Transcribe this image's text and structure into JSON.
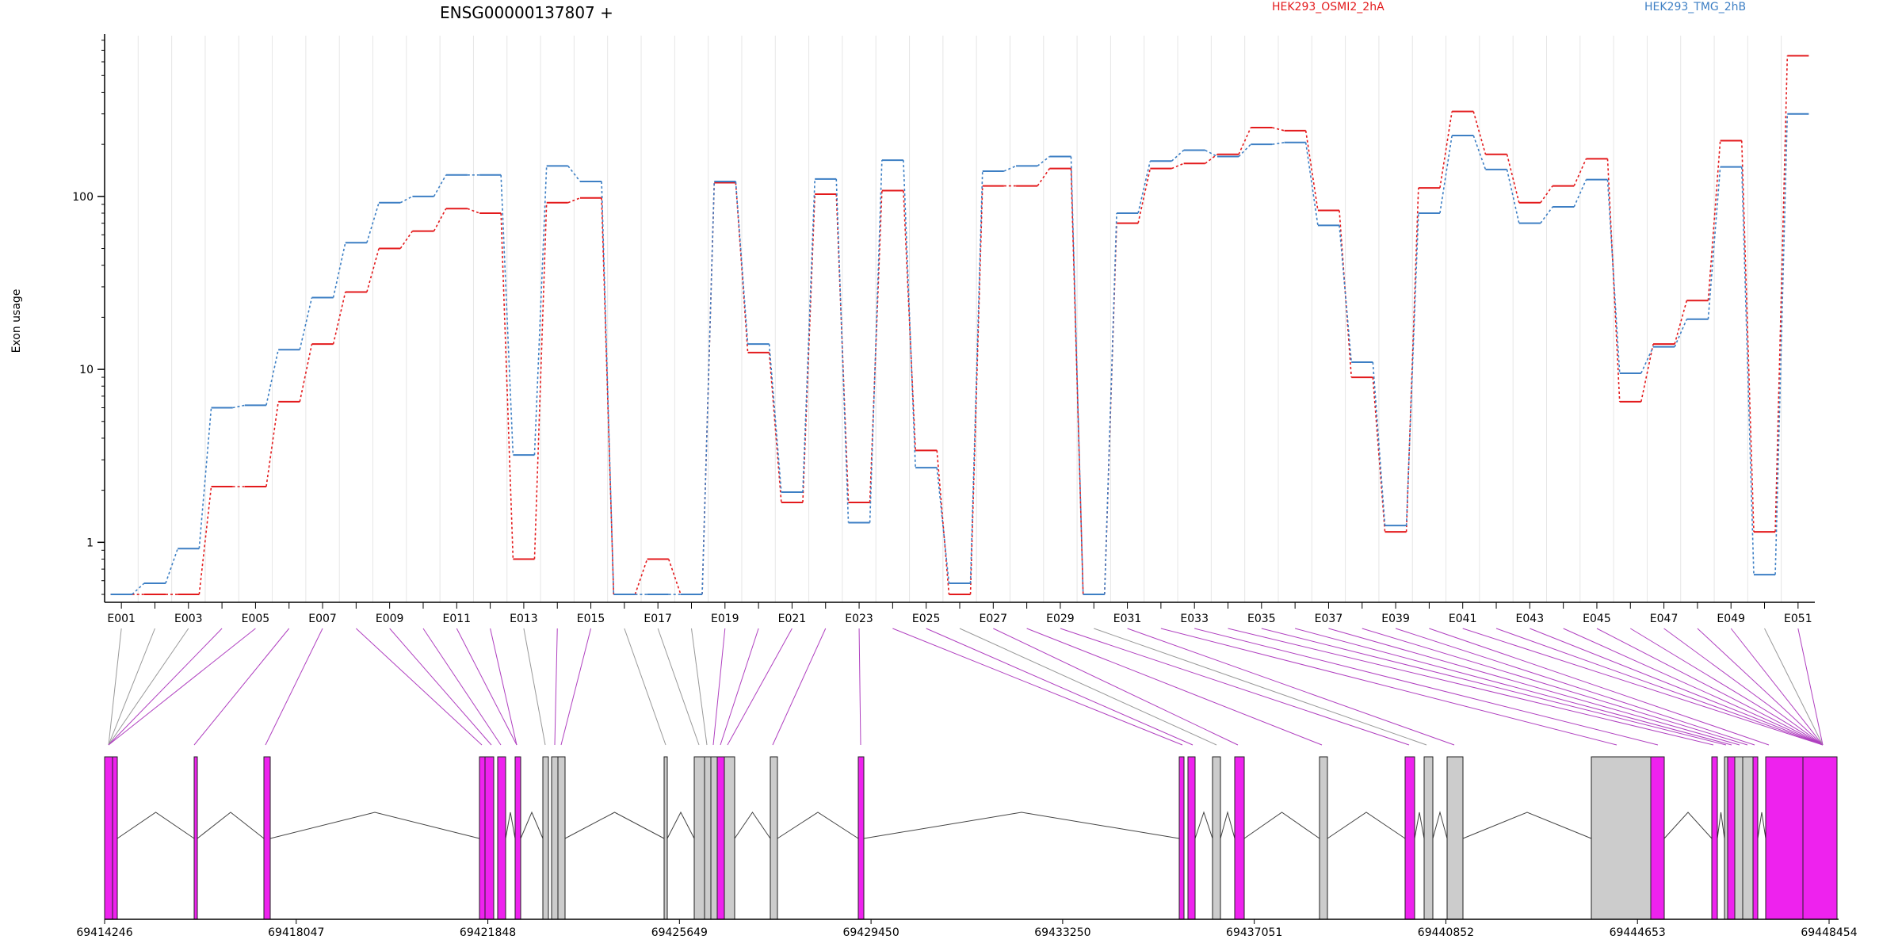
{
  "chart_data": {
    "type": "line",
    "title": "ENSG00000137807 +",
    "ylabel": "Exon usage",
    "yscale": "log",
    "ylim": [
      0.45,
      850
    ],
    "yticks": [
      1,
      10,
      100
    ],
    "ytick_labels": [
      "1",
      "10",
      "100"
    ],
    "xtick_labels": [
      "E001",
      "E003",
      "E005",
      "E007",
      "E009",
      "E011",
      "E013",
      "E015",
      "E017",
      "E019",
      "E021",
      "E023",
      "E025",
      "E027",
      "E029",
      "E031",
      "E033",
      "E035",
      "E037",
      "E039",
      "E041",
      "E043",
      "E045",
      "E047",
      "E049",
      "E051"
    ],
    "grid": "vertical",
    "legend_position": "top",
    "categories": [
      "E001",
      "E002",
      "E003",
      "E004",
      "E005",
      "E006",
      "E007",
      "E008",
      "E009",
      "E010",
      "E011",
      "E012",
      "E013",
      "E014",
      "E015",
      "E016",
      "E017",
      "E018",
      "E019",
      "E020",
      "E021",
      "E022",
      "E023",
      "E024",
      "E025",
      "E026",
      "E027",
      "E028",
      "E029",
      "E030",
      "E031",
      "E032",
      "E033",
      "E034",
      "E035",
      "E036",
      "E037",
      "E038",
      "E039",
      "E040",
      "E041",
      "E042",
      "E043",
      "E044",
      "E045",
      "E046",
      "E047",
      "E048",
      "E049",
      "E050",
      "E051"
    ],
    "series": [
      {
        "name": "HEK293_OSMI2_2hA",
        "color": "#e31a1c",
        "values": [
          0.5,
          0.5,
          0.5,
          2.1,
          2.1,
          6.5,
          14,
          28,
          50,
          63,
          85,
          80,
          0.8,
          92,
          98,
          0.5,
          0.8,
          0.5,
          120,
          12.5,
          1.7,
          103,
          1.7,
          108,
          3.4,
          0.5,
          115,
          115,
          145,
          0.5,
          70,
          145,
          155,
          175,
          250,
          240,
          83,
          9,
          1.15,
          112,
          310,
          175,
          92,
          115,
          165,
          6.5,
          14,
          25,
          210,
          1.15,
          650
        ]
      },
      {
        "name": "HEK293_TMG_2hB",
        "color": "#3d7fc4",
        "values": [
          0.5,
          0.58,
          0.92,
          6,
          6.2,
          13,
          26,
          54,
          92,
          100,
          133,
          133,
          3.2,
          150,
          122,
          0.5,
          0.5,
          0.5,
          122,
          14,
          1.95,
          126,
          1.3,
          162,
          2.7,
          0.58,
          140,
          150,
          170,
          0.5,
          80,
          160,
          185,
          170,
          200,
          205,
          68,
          11,
          1.25,
          80,
          225,
          143,
          70,
          87,
          125,
          9.5,
          13.5,
          19.5,
          148,
          0.65,
          300
        ]
      }
    ],
    "gene_model": {
      "coordinate_labels": [
        "69414246",
        "69418047",
        "69421848",
        "69425649",
        "69429450",
        "69433250",
        "69437051",
        "69440852",
        "69444653",
        "69448454"
      ]
    }
  },
  "colors": {
    "tested_exon": "#ee22ee",
    "untested_exon": "#cccccc",
    "tested_link": "#b040c0",
    "untested_link": "#999999",
    "axis": "#000000",
    "grid": "#e6e6e6"
  }
}
